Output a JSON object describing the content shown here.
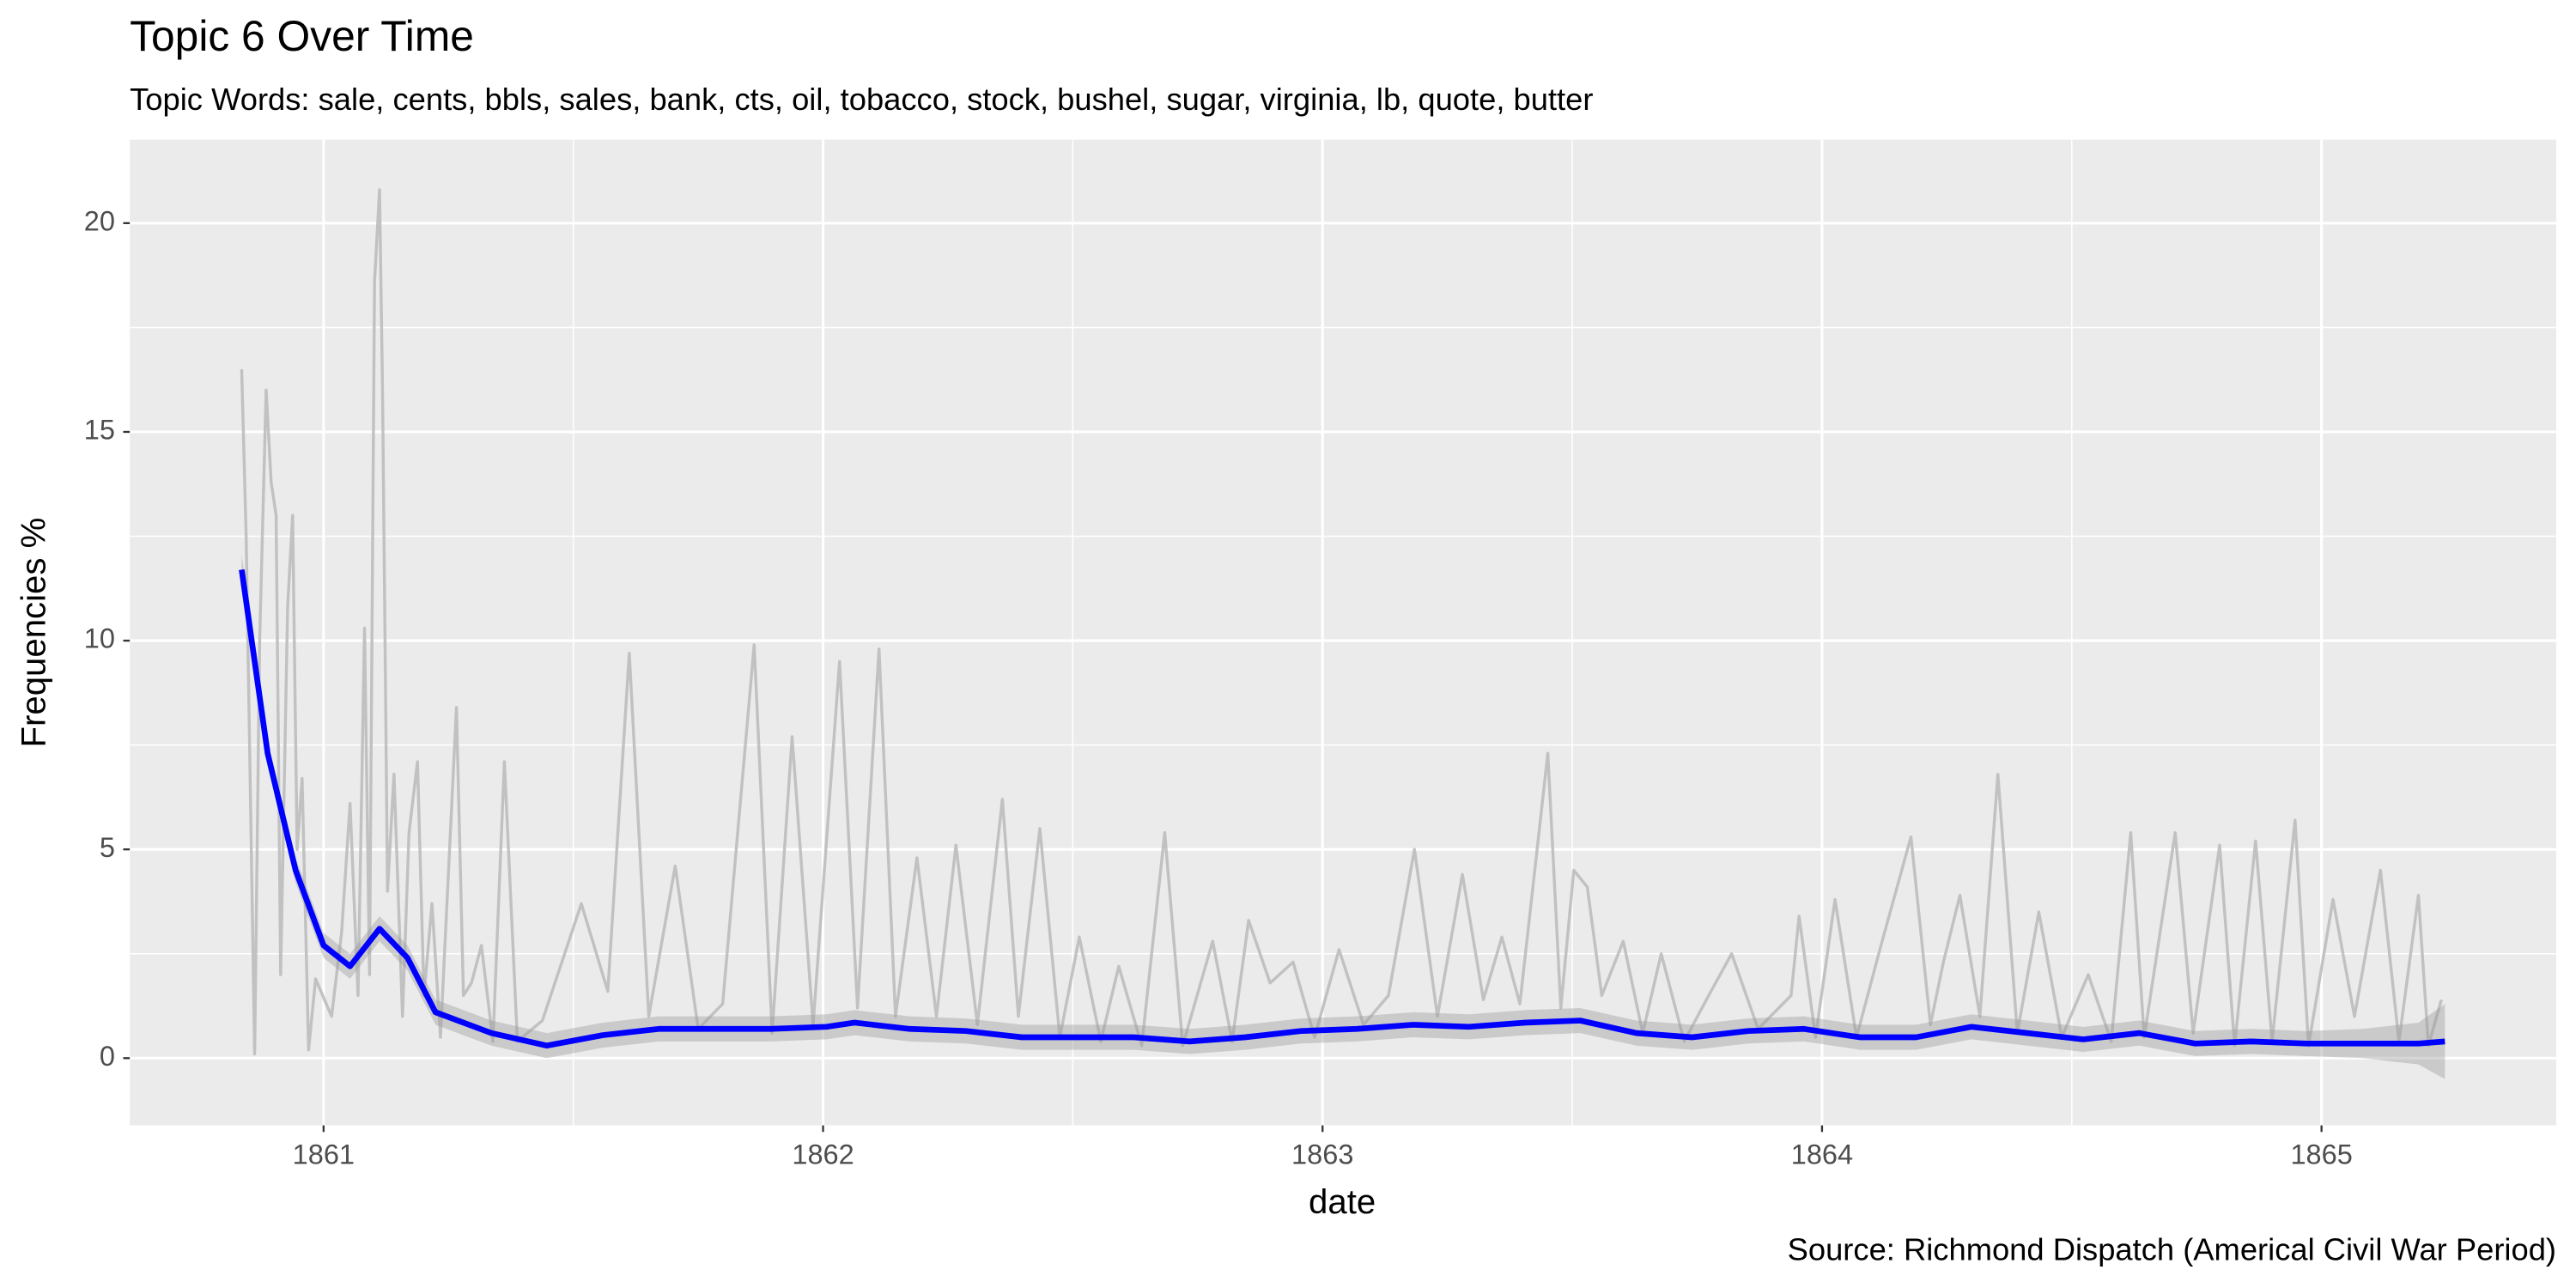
{
  "chart_data": {
    "type": "line",
    "title": "Topic 6 Over Time",
    "subtitle": "Topic Words: sale, cents, bbls, sales, bank, cts, oil, tobacco, stock, bushel, sugar, virginia, lb, quote, butter",
    "xlabel": "date",
    "ylabel": "Frequencies %",
    "caption": "Source: Richmond Dispatch (Americal Civil War Period)",
    "xlim": [
      1860.612,
      1865.47
    ],
    "ylim": [
      -1.61,
      22.0
    ],
    "xticks": [
      1861,
      1862,
      1863,
      1864,
      1865
    ],
    "yticks": [
      0,
      5,
      10,
      15,
      20
    ],
    "grid": true,
    "series": [
      {
        "color": "#bdbdbd",
        "x": [
          1860.836,
          1860.845,
          1860.862,
          1860.872,
          1860.885,
          1860.895,
          1860.905,
          1860.914,
          1860.928,
          1860.938,
          1860.947,
          1860.957,
          1860.97,
          1860.984,
          1861.016,
          1861.036,
          1861.053,
          1861.069,
          1861.082,
          1861.092,
          1861.102,
          1861.112,
          1861.118,
          1861.128,
          1861.141,
          1861.158,
          1861.171,
          1861.188,
          1861.201,
          1861.217,
          1861.234,
          1861.266,
          1861.28,
          1861.296,
          1861.316,
          1861.339,
          1861.362,
          1861.388,
          1861.438,
          1861.516,
          1861.569,
          1861.612,
          1861.651,
          1861.704,
          1861.75,
          1861.799,
          1861.862,
          1861.898,
          1861.938,
          1861.98,
          1862.033,
          1862.069,
          1862.112,
          1862.145,
          1862.188,
          1862.227,
          1862.266,
          1862.309,
          1862.359,
          1862.391,
          1862.434,
          1862.474,
          1862.513,
          1862.556,
          1862.592,
          1862.638,
          1862.684,
          1862.72,
          1862.78,
          1862.819,
          1862.852,
          1862.895,
          1862.941,
          1862.984,
          1863.033,
          1863.082,
          1863.132,
          1863.184,
          1863.23,
          1863.28,
          1863.322,
          1863.359,
          1863.395,
          1863.451,
          1863.477,
          1863.503,
          1863.53,
          1863.559,
          1863.602,
          1863.641,
          1863.678,
          1863.724,
          1863.773,
          1863.819,
          1863.872,
          1863.938,
          1863.954,
          1863.987,
          1864.026,
          1864.069,
          1864.118,
          1864.178,
          1864.217,
          1864.243,
          1864.276,
          1864.316,
          1864.352,
          1864.391,
          1864.434,
          1864.48,
          1864.533,
          1864.579,
          1864.618,
          1864.645,
          1864.707,
          1864.743,
          1864.796,
          1864.826,
          1864.868,
          1864.901,
          1864.947,
          1864.974,
          1865.023,
          1865.066,
          1865.118,
          1865.155,
          1865.194,
          1865.214,
          1865.24
        ],
        "values": [
          16.5,
          12.5,
          0.1,
          10,
          16,
          13.8,
          13,
          2,
          10.8,
          13,
          5,
          6.7,
          0.2,
          1.9,
          1,
          3,
          6.1,
          1.5,
          10.3,
          2,
          18.6,
          20.8,
          16,
          4,
          6.8,
          1,
          5.4,
          7.1,
          1.5,
          3.7,
          0.5,
          8.4,
          1.5,
          1.8,
          2.7,
          0.4,
          7.1,
          0.4,
          0.9,
          3.7,
          1.6,
          9.7,
          1,
          4.6,
          0.7,
          1.3,
          9.9,
          0.6,
          7.7,
          0.8,
          9.5,
          1.2,
          9.8,
          1,
          4.8,
          1,
          5.1,
          0.8,
          6.2,
          1,
          5.5,
          0.5,
          2.9,
          0.4,
          2.2,
          0.3,
          5.4,
          0.3,
          2.8,
          0.4,
          3.3,
          1.8,
          2.3,
          0.5,
          2.6,
          0.8,
          1.5,
          5,
          1,
          4.4,
          1.4,
          2.9,
          1.3,
          7.3,
          1.2,
          4.5,
          4.1,
          1.5,
          2.8,
          0.6,
          2.5,
          0.4,
          1.5,
          2.5,
          0.7,
          1.5,
          3.4,
          0.5,
          3.8,
          0.5,
          2.7,
          5.3,
          0.8,
          2.3,
          3.9,
          1,
          6.8,
          0.6,
          3.5,
          0.5,
          2,
          0.4,
          5.4,
          0.5,
          5.4,
          0.6,
          5.1,
          0.3,
          5.2,
          0.4,
          5.7,
          0.3,
          3.8,
          1,
          4.5,
          0.4,
          3.9,
          0.3,
          1.4
        ]
      },
      {
        "color": "#0000ff",
        "x": [
          1860.836,
          1860.888,
          1860.944,
          1861.0,
          1861.053,
          1861.112,
          1861.168,
          1861.224,
          1861.336,
          1861.447,
          1861.559,
          1861.671,
          1861.783,
          1861.895,
          1862.007,
          1862.063,
          1862.174,
          1862.286,
          1862.398,
          1862.51,
          1862.622,
          1862.734,
          1862.845,
          1862.957,
          1863.069,
          1863.181,
          1863.293,
          1863.405,
          1863.516,
          1863.628,
          1863.74,
          1863.852,
          1863.964,
          1864.076,
          1864.188,
          1864.299,
          1864.411,
          1864.523,
          1864.635,
          1864.747,
          1864.859,
          1864.97,
          1865.082,
          1865.194,
          1865.247
        ],
        "values": [
          11.7,
          7.3,
          4.5,
          2.7,
          2.2,
          3.1,
          2.4,
          1.1,
          0.6,
          0.3,
          0.55,
          0.7,
          0.7,
          0.7,
          0.75,
          0.85,
          0.7,
          0.65,
          0.5,
          0.5,
          0.5,
          0.4,
          0.5,
          0.65,
          0.7,
          0.8,
          0.75,
          0.85,
          0.9,
          0.6,
          0.5,
          0.65,
          0.7,
          0.5,
          0.5,
          0.75,
          0.6,
          0.45,
          0.6,
          0.35,
          0.4,
          0.35,
          0.35,
          0.35,
          0.4
        ],
        "lower": [
          11.35,
          7.0,
          4.2,
          2.4,
          1.9,
          2.8,
          2.1,
          0.8,
          0.3,
          0.0,
          0.25,
          0.4,
          0.4,
          0.4,
          0.45,
          0.55,
          0.4,
          0.35,
          0.2,
          0.2,
          0.2,
          0.1,
          0.2,
          0.35,
          0.4,
          0.5,
          0.45,
          0.55,
          0.6,
          0.3,
          0.2,
          0.35,
          0.4,
          0.2,
          0.2,
          0.45,
          0.3,
          0.15,
          0.3,
          0.05,
          0.1,
          0.05,
          0.0,
          -0.15,
          -0.5
        ],
        "upper": [
          12.05,
          7.6,
          4.8,
          3.0,
          2.5,
          3.4,
          2.7,
          1.4,
          0.9,
          0.6,
          0.85,
          1.0,
          1.0,
          1.0,
          1.05,
          1.15,
          1.0,
          0.95,
          0.8,
          0.8,
          0.8,
          0.7,
          0.8,
          0.95,
          1.0,
          1.1,
          1.05,
          1.15,
          1.2,
          0.9,
          0.8,
          0.95,
          1.0,
          0.8,
          0.8,
          1.05,
          0.9,
          0.75,
          0.9,
          0.65,
          0.7,
          0.65,
          0.7,
          0.85,
          1.3
        ],
        "band_color": "#999999"
      }
    ]
  }
}
